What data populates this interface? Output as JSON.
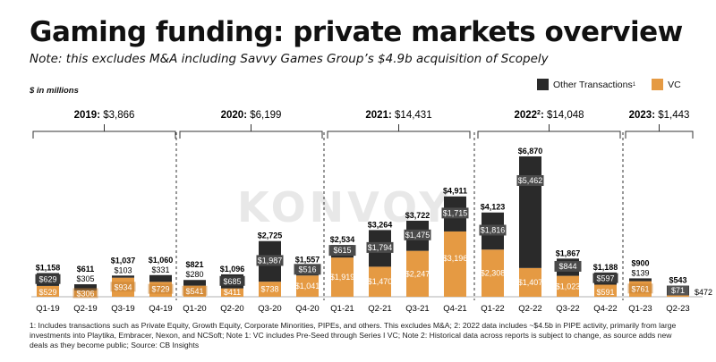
{
  "title": "Gaming funding: private markets overview",
  "subtitle": "Note: this excludes M&A including Savvy Games Group’s $4.9b acquisition of Scopely",
  "unit_label": "$ in millions",
  "watermark": "KONVOY",
  "colors": {
    "other": "#2a2a2a",
    "vc": "#e59a43",
    "text": "#111111"
  },
  "legend": [
    {
      "name": "Other Transactions",
      "sup": "1",
      "color": "#2a2a2a"
    },
    {
      "name": "VC",
      "sup": "",
      "color": "#e59a43"
    }
  ],
  "footnote": "1: Includes transactions such as Private Equity, Growth Equity, Corporate Minorities, PIPEs, and others. This excludes M&A; 2: 2022 data includes ~$4.5b in PIPE activity, primarily from large investments into Playtika, Embracer, Nexon, and NCSoft; Note 1: VC includes Pre-Seed through Series I VC; Note 2: Historical data across reports is subject to change, as source adds new deals as they become public; Source: CB Insights",
  "chart_data": {
    "type": "bar",
    "stacked": true,
    "categories": [
      "Q1-19",
      "Q2-19",
      "Q3-19",
      "Q4-19",
      "Q1-20",
      "Q2-20",
      "Q3-20",
      "Q4-20",
      "Q1-21",
      "Q2-21",
      "Q3-21",
      "Q4-21",
      "Q1-22",
      "Q2-22",
      "Q3-22",
      "Q4-22",
      "Q1-23",
      "Q2-23"
    ],
    "series": [
      {
        "name": "VC",
        "values": [
          529,
          306,
          934,
          729,
          541,
          411,
          738,
          1041,
          1919,
          1470,
          2247,
          3196,
          2308,
          1407,
          1023,
          591,
          761,
          71
        ]
      },
      {
        "name": "Other Transactions",
        "values": [
          629,
          305,
          103,
          331,
          280,
          685,
          1987,
          516,
          615,
          1794,
          1475,
          1715,
          1816,
          5462,
          844,
          597,
          139,
          472
        ]
      }
    ],
    "totals": [
      1158,
      611,
      1037,
      1060,
      821,
      1096,
      2725,
      1557,
      2534,
      3264,
      3722,
      4911,
      4123,
      6870,
      1867,
      1188,
      900,
      543
    ],
    "vc_labels": [
      "$529",
      "$306",
      "$934",
      "$729",
      "$541",
      "$411",
      "$738",
      "$1,041",
      "$1,919",
      "$1,470",
      "$2,247",
      "$3,196",
      "$2,308",
      "$1,407",
      "$1,023",
      "$591",
      "$761",
      "$71"
    ],
    "other_labels": [
      "$629",
      "$305",
      "$103",
      "$331",
      "$280",
      "$685",
      "$1,987",
      "$516",
      "$615",
      "$1,794",
      "$1,475",
      "$1,715",
      "$1,816",
      "$5,462",
      "$844",
      "$597",
      "$139",
      "$472"
    ],
    "total_labels": [
      "$1,158",
      "$611",
      "$1,037",
      "$1,060",
      "$821",
      "$1,096",
      "$2,725",
      "$1,557",
      "$2,534",
      "$3,264",
      "$3,722",
      "$4,911",
      "$4,123",
      "$6,870",
      "$1,867",
      "$1,188",
      "$900",
      "$543"
    ],
    "years": [
      {
        "label": "2019",
        "sup": "",
        "total": "$3,866",
        "start": 0,
        "end": 3
      },
      {
        "label": "2020",
        "sup": "",
        "total": "$6,199",
        "start": 4,
        "end": 7
      },
      {
        "label": "2021",
        "sup": "",
        "total": "$14,431",
        "start": 8,
        "end": 11
      },
      {
        "label": "2022",
        "sup": "2",
        "total": "$14,048",
        "start": 12,
        "end": 15
      },
      {
        "label": "2023",
        "sup": "",
        "total": "$1,443",
        "start": 16,
        "end": 17
      }
    ],
    "ylim": [
      0,
      7000
    ],
    "grid": false,
    "legend_position": "top-right"
  }
}
